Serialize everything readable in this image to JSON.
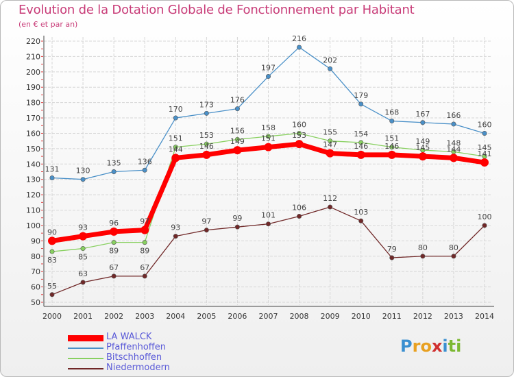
{
  "title": "Evolution de la Dotation Globale de Fonctionnement par Habitant",
  "subtitle": "(en € et par an)",
  "brand": {
    "letters": [
      "P",
      "r",
      "o",
      "x",
      "i",
      "t",
      "i"
    ],
    "colors": [
      "#3a8fd0",
      "#e8a020",
      "#e8a020",
      "#d03030",
      "#3a8fd0",
      "#7cb832",
      "#7cb832"
    ]
  },
  "chart_data": {
    "type": "line",
    "title": "Evolution de la Dotation Globale de Fonctionnement par Habitant",
    "ylabel": "(en € et par an)",
    "xlabel": "",
    "x": [
      "2000",
      "2001",
      "2002",
      "2003",
      "2004",
      "2005",
      "2006",
      "2007",
      "2008",
      "2009",
      "2010",
      "2011",
      "2012",
      "2013",
      "2014"
    ],
    "ylim": [
      50,
      220
    ],
    "yticks": [
      "50",
      "60",
      "70",
      "80",
      "90",
      "100",
      "110",
      "120",
      "130",
      "140",
      "150",
      "160",
      "170",
      "180",
      "190",
      "200",
      "210",
      "220"
    ],
    "grid": true,
    "legend_position": "bottom-left",
    "series": [
      {
        "name": "LA WALCK",
        "color": "#ff0000",
        "values": [
          90,
          93,
          96,
          97,
          144,
          146,
          149,
          151,
          153,
          147,
          146,
          146,
          145,
          144,
          141
        ],
        "labels": [
          "90",
          "93",
          "96",
          "97",
          "144",
          "146",
          "149",
          "151",
          "153",
          "147",
          "146",
          "146",
          "145",
          "144",
          "141"
        ]
      },
      {
        "name": "Pfaffenhoffen",
        "color": "#4a90c8",
        "values": [
          131,
          130,
          135,
          136,
          170,
          173,
          176,
          197,
          216,
          202,
          179,
          168,
          167,
          166,
          160
        ],
        "labels": [
          "131",
          "130",
          "135",
          "136",
          "170",
          "173",
          "176",
          "197",
          "216",
          "202",
          "179",
          "168",
          "167",
          "166",
          "160"
        ]
      },
      {
        "name": "Bitschhoffen",
        "color": "#88d060",
        "values": [
          83,
          85,
          89,
          89,
          151,
          153,
          156,
          158,
          160,
          155,
          154,
          151,
          149,
          148,
          145
        ],
        "labels": [
          "83",
          "85",
          "89",
          "89",
          "151",
          "153",
          "156",
          "158",
          "160",
          "155",
          "154",
          "151",
          "149",
          "148",
          "145"
        ]
      },
      {
        "name": "Niedermodern",
        "color": "#702828",
        "values": [
          55,
          63,
          67,
          67,
          93,
          97,
          99,
          101,
          106,
          112,
          103,
          79,
          80,
          80,
          100
        ],
        "labels": [
          "55",
          "63",
          "67",
          "67",
          "93",
          "97",
          "99",
          "101",
          "106",
          "112",
          "103",
          "79",
          "80",
          "80",
          "100"
        ]
      }
    ]
  }
}
